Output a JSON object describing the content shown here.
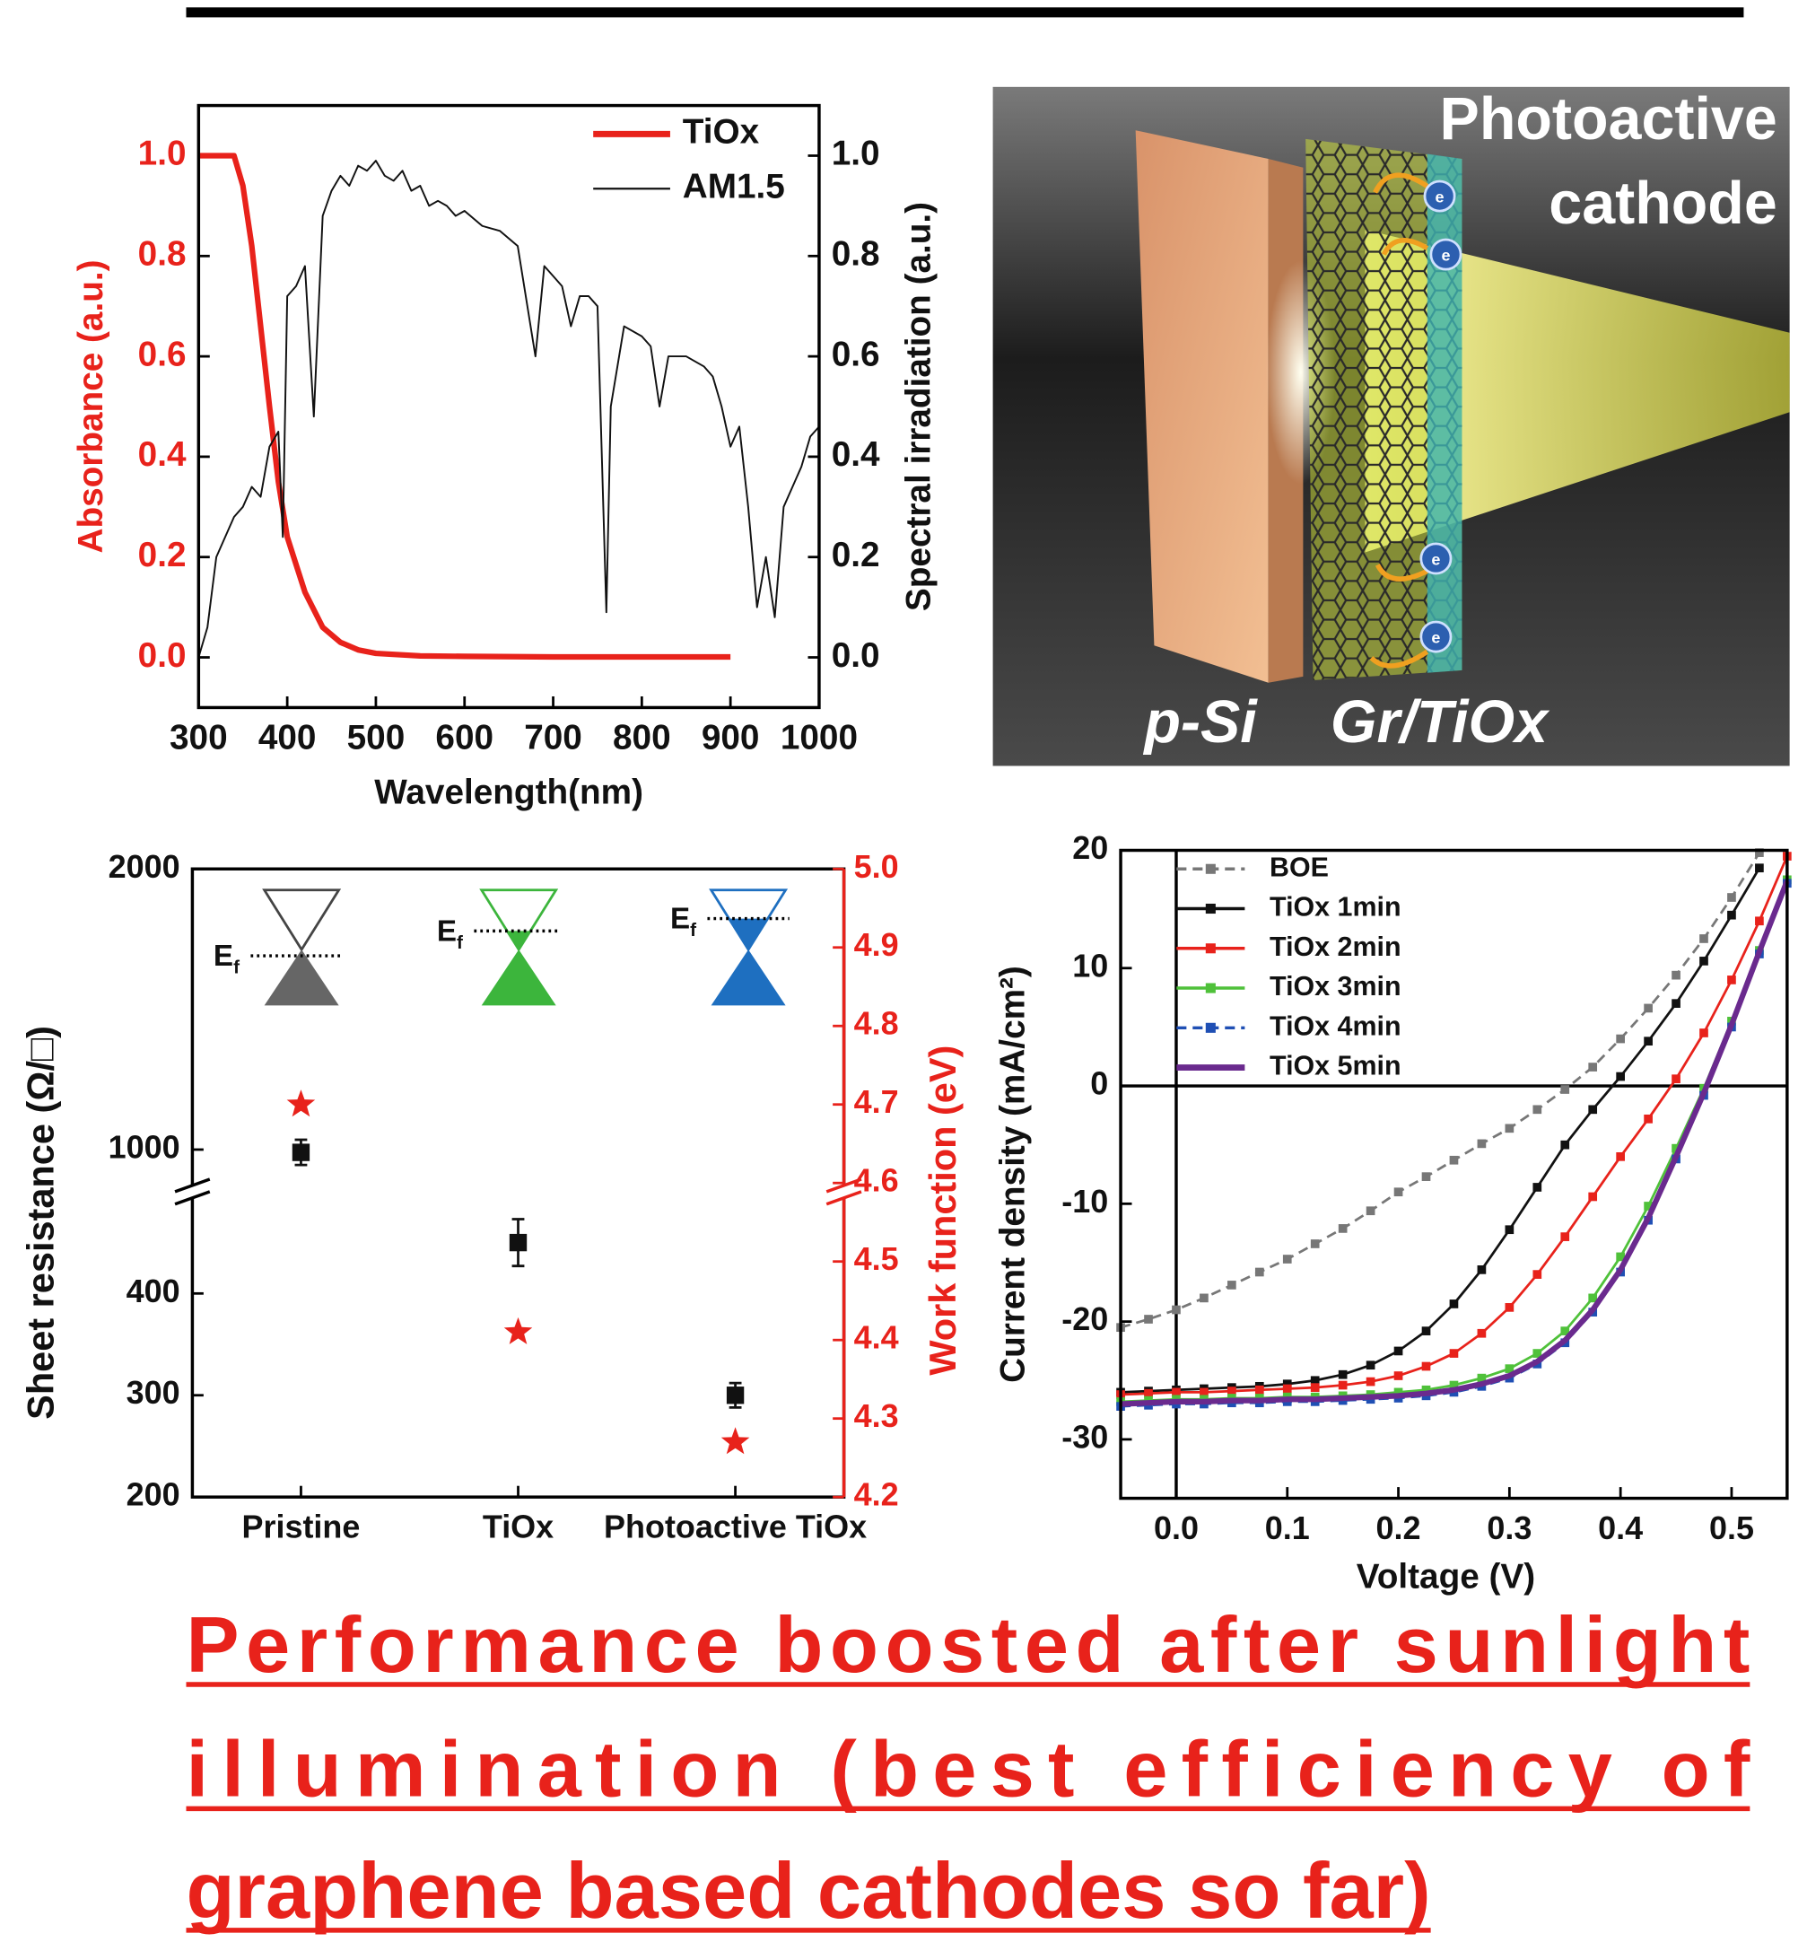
{
  "chart_data": [
    {
      "type": "line",
      "x_label": "Wavelength(nm)",
      "y_label": "Absorbance (a.u.)",
      "y2_label": "Spectral irradiation (a.u.)",
      "y_color": "#e8221b",
      "xlim": [
        300,
        1000
      ],
      "xticks": [
        300,
        400,
        500,
        600,
        700,
        800,
        900,
        1000
      ],
      "ylim": [
        -0.1,
        1.1
      ],
      "yticks": [
        {
          "value": 0,
          "label": "0.0"
        },
        0.2,
        0.4,
        0.6,
        0.8,
        {
          "value": 1,
          "label": "1.0"
        }
      ],
      "y2lim": [
        -0.1,
        1.1
      ],
      "y2ticks": [
        {
          "value": 0,
          "label": "0.0"
        },
        0.2,
        0.4,
        0.6,
        0.8,
        {
          "value": 1,
          "label": "1.0"
        }
      ],
      "legend": "upper right",
      "series": [
        {
          "name": "TiOx",
          "color": "#e8221b",
          "x": [
            300,
            320,
            340,
            350,
            360,
            370,
            380,
            390,
            400,
            420,
            440,
            460,
            480,
            500,
            550,
            600,
            700,
            800,
            900
          ],
          "values": [
            1,
            1,
            1,
            0.94,
            0.82,
            0.66,
            0.5,
            0.35,
            0.24,
            0.13,
            0.06,
            0.03,
            0.015,
            0.008,
            0.003,
            0.002,
            0.001,
            0.001,
            0.001
          ]
        },
        {
          "name": "AM1.5",
          "color": "#111111",
          "axis": "y2",
          "x": [
            300,
            310,
            320,
            330,
            340,
            350,
            360,
            370,
            380,
            390,
            395,
            400,
            410,
            420,
            430,
            440,
            450,
            460,
            470,
            480,
            490,
            500,
            510,
            520,
            530,
            540,
            550,
            560,
            570,
            580,
            590,
            600,
            620,
            640,
            660,
            680,
            690,
            700,
            710,
            720,
            730,
            740,
            750,
            760,
            765,
            780,
            800,
            810,
            820,
            830,
            850,
            870,
            880,
            890,
            900,
            910,
            920,
            930,
            940,
            950,
            960,
            970,
            980,
            990,
            1000
          ],
          "values": [
            0,
            0.06,
            0.2,
            0.24,
            0.28,
            0.3,
            0.34,
            0.32,
            0.42,
            0.45,
            0.24,
            0.72,
            0.74,
            0.78,
            0.48,
            0.88,
            0.93,
            0.96,
            0.94,
            0.98,
            0.97,
            0.99,
            0.96,
            0.95,
            0.97,
            0.93,
            0.94,
            0.9,
            0.91,
            0.9,
            0.88,
            0.89,
            0.86,
            0.85,
            0.82,
            0.6,
            0.78,
            0.76,
            0.74,
            0.66,
            0.72,
            0.72,
            0.7,
            0.09,
            0.5,
            0.66,
            0.64,
            0.62,
            0.5,
            0.6,
            0.6,
            0.58,
            0.56,
            0.5,
            0.42,
            0.46,
            0.3,
            0.1,
            0.2,
            0.08,
            0.3,
            0.34,
            0.38,
            0.44,
            0.46
          ]
        }
      ]
    },
    {
      "type": "scatter",
      "categories": [
        "Pristine",
        "TiOx",
        "Photoactive TiOx"
      ],
      "y_label": "Sheet resistance (Ω/□)",
      "y2_label": "Work function (eV)",
      "y2_color": "#e8221b",
      "ylim": [
        200,
        2000
      ],
      "y_break": [
        500,
        850
      ],
      "yticks": [
        200,
        300,
        400,
        1000,
        2000
      ],
      "y2lim": [
        4.2,
        5.0
      ],
      "y2ticks": [
        4.2,
        4.3,
        4.4,
        4.5,
        4.6,
        4.7,
        4.8,
        4.9,
        {
          "value": 5,
          "label": "5.0"
        }
      ],
      "fermi_label": {
        "main": "E",
        "sub": "f"
      },
      "series": [
        {
          "color": "#111111",
          "marker": "square",
          "values": [
            990,
            450,
            300
          ],
          "errors": [
            45,
            23,
            12
          ]
        },
        {
          "color": "#e8221b",
          "marker": "star",
          "axis": "y2",
          "values": [
            4.7,
            4.41,
            4.27
          ]
        }
      ]
    },
    {
      "type": "line",
      "x_label": "Voltage (V)",
      "y_label": "Current density (mA/cm²)",
      "xlim": [
        -0.05,
        0.55
      ],
      "xticks": [
        {
          "value": 0,
          "label": "0.0"
        },
        0.1,
        0.2,
        0.3,
        0.4,
        0.5
      ],
      "ylim": [
        -35,
        20
      ],
      "yticks": [
        -30,
        -20,
        -10,
        0,
        10,
        20
      ],
      "zero_lines": true,
      "legend": "upper left",
      "x": [
        -0.05,
        -0.025,
        0,
        0.025,
        0.05,
        0.075,
        0.1,
        0.125,
        0.15,
        0.175,
        0.2,
        0.225,
        0.25,
        0.275,
        0.3,
        0.325,
        0.35,
        0.375,
        0.4,
        0.425,
        0.45,
        0.475,
        0.5,
        0.525,
        0.55
      ],
      "series": [
        {
          "name": "BOE",
          "color": "#777777",
          "marker": "square",
          "dashed": true,
          "values": [
            -20.5,
            -19.8,
            -19.0,
            -18.0,
            -16.9,
            -15.8,
            -14.7,
            -13.4,
            -12.1,
            -10.6,
            -9.0,
            -7.7,
            -6.3,
            -4.9,
            -3.6,
            -2.0,
            -0.3,
            1.6,
            4.0,
            6.6,
            9.4,
            12.5,
            16.0,
            19.8,
            null
          ]
        },
        {
          "name": "TiOx 1min",
          "color": "#111111",
          "marker": "square",
          "values": [
            -26.0,
            -25.9,
            -25.8,
            -25.7,
            -25.6,
            -25.5,
            -25.3,
            -25.0,
            -24.5,
            -23.7,
            -22.5,
            -20.8,
            -18.5,
            -15.6,
            -12.2,
            -8.6,
            -5.0,
            -2.0,
            0.8,
            3.8,
            7.0,
            10.6,
            14.5,
            18.5,
            null
          ]
        },
        {
          "name": "TiOx 2min",
          "color": "#e8221b",
          "marker": "square",
          "values": [
            -26.2,
            -26.1,
            -26.0,
            -26.0,
            -25.9,
            -25.8,
            -25.7,
            -25.6,
            -25.4,
            -25.1,
            -24.6,
            -23.8,
            -22.7,
            -21.0,
            -18.8,
            -16.0,
            -12.8,
            -9.4,
            -6.0,
            -2.8,
            0.6,
            4.5,
            9.0,
            14.0,
            19.5
          ]
        },
        {
          "name": "TiOx 3min",
          "color": "#4fc13a",
          "marker": "square",
          "values": [
            -26.8,
            -26.7,
            -26.6,
            -26.6,
            -26.5,
            -26.5,
            -26.4,
            -26.4,
            -26.3,
            -26.2,
            -26.0,
            -25.8,
            -25.4,
            -24.8,
            -24.0,
            -22.7,
            -20.8,
            -18.0,
            -14.5,
            -10.2,
            -5.3,
            -0.2,
            5.5,
            11.5,
            17.5
          ]
        },
        {
          "name": "TiOx 4min",
          "color": "#1f4fb4",
          "marker": "square",
          "dashed": true,
          "values": [
            -27.2,
            -27.1,
            -27.0,
            -27.0,
            -26.9,
            -26.9,
            -26.8,
            -26.8,
            -26.7,
            -26.6,
            -26.5,
            -26.3,
            -26.0,
            -25.5,
            -24.8,
            -23.6,
            -21.8,
            -19.2,
            -15.8,
            -11.4,
            -6.2,
            -0.8,
            5.0,
            11.2,
            17.2
          ]
        },
        {
          "name": "TiOx 5min",
          "color": "#6a2a8e",
          "values": [
            -27.0,
            -26.9,
            -26.8,
            -26.8,
            -26.7,
            -26.7,
            -26.6,
            -26.6,
            -26.5,
            -26.4,
            -26.3,
            -26.1,
            -25.8,
            -25.3,
            -24.6,
            -23.4,
            -21.6,
            -19.0,
            -15.6,
            -11.2,
            -6.0,
            -0.6,
            5.2,
            11.4,
            17.4
          ]
        }
      ]
    }
  ],
  "illustration": {
    "title_lines": [
      "Photoactive",
      "cathode"
    ],
    "labels": [
      "p-Si",
      "Gr/TiOx"
    ],
    "electron_label": "e"
  },
  "conclusion_lines": [
    "Performance boosted after sunlight",
    "illumination (best efficiency of",
    "graphene based cathodes so far)"
  ]
}
